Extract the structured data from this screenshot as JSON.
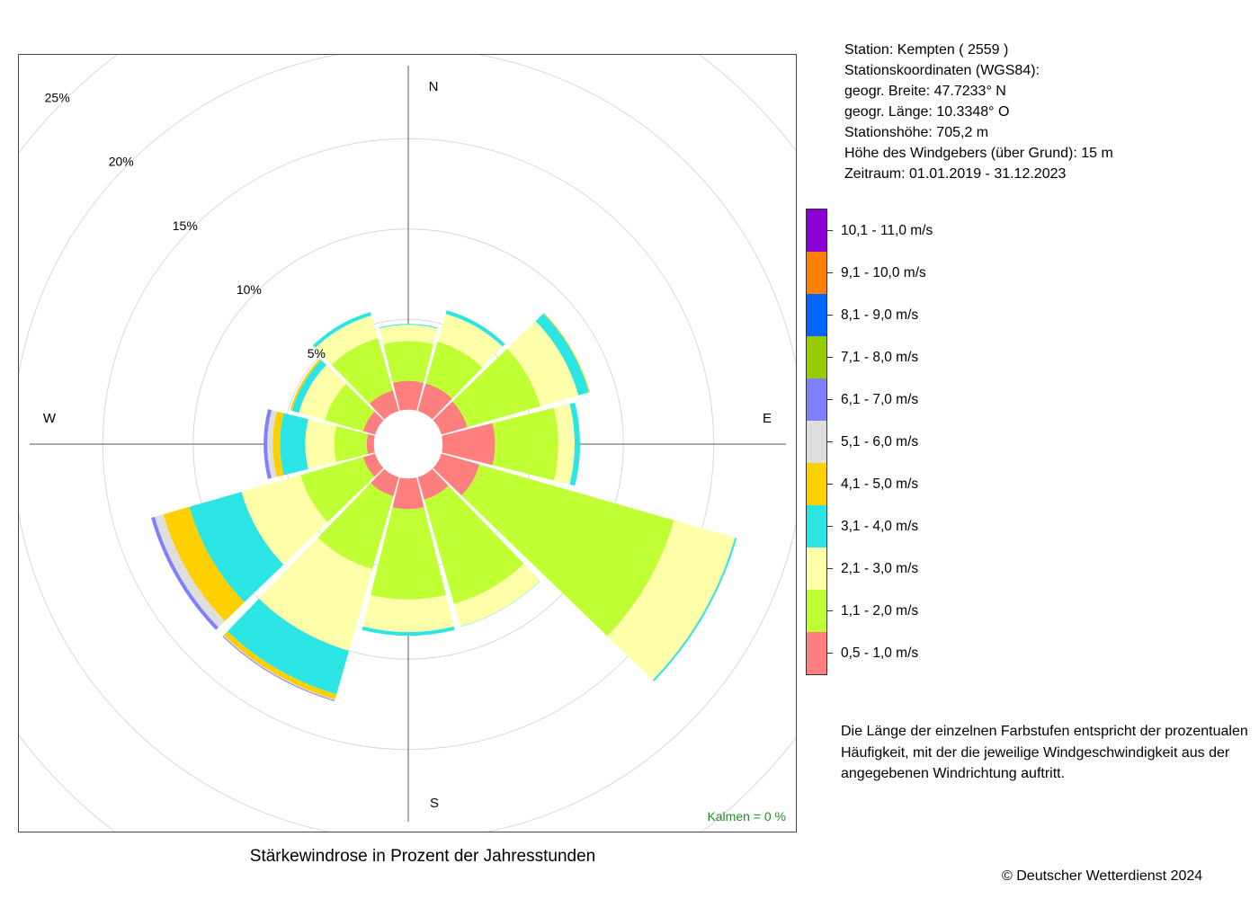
{
  "chart_data": {
    "type": "windrose",
    "title": "Stärkewindrose in Prozent der Jahresstunden",
    "radial_labels": [
      "5%",
      "10%",
      "15%",
      "20%",
      "25%"
    ],
    "radial_values": [
      5,
      10,
      15,
      20,
      25
    ],
    "radial_max": 21.5,
    "compass_labels": {
      "N": "N",
      "E": "E",
      "S": "S",
      "W": "W"
    },
    "directions_deg": [
      0,
      30,
      60,
      90,
      120,
      150,
      180,
      210,
      240,
      270,
      300,
      330
    ],
    "speed_classes": [
      "0,5 - 1,0 m/s",
      "1,1 - 2,0 m/s",
      "2,1 - 3,0 m/s",
      "3,1 - 4,0 m/s",
      "4,1 - 5,0 m/s",
      "5,1 - 6,0 m/s",
      "6,1 - 7,0 m/s",
      "7,1 - 8,0 m/s",
      "8,1 - 9,0 m/s",
      "9,1 - 10,0 m/s",
      "10,1 - 11,0 m/s"
    ],
    "speed_colors": [
      "#ff7f7f",
      "#bfff33",
      "#ffffaa",
      "#2be5e5",
      "#ffd000",
      "#dedede",
      "#8080ff",
      "#99cc00",
      "#0066ff",
      "#ff8000",
      "#8a00d4"
    ],
    "inner_radius_pct": 1.9,
    "series": [
      {
        "direction": 0,
        "values": [
          1.6,
          2.2,
          0.9,
          0.05,
          0,
          0,
          0,
          0,
          0,
          0,
          0
        ]
      },
      {
        "direction": 30,
        "values": [
          1.6,
          2.4,
          1.6,
          0.2,
          0,
          0,
          0,
          0,
          0,
          0,
          0
        ]
      },
      {
        "direction": 60,
        "values": [
          1.5,
          4.2,
          2.2,
          0.6,
          0.05,
          0,
          0,
          0,
          0,
          0,
          0
        ]
      },
      {
        "direction": 90,
        "values": [
          2.9,
          3.5,
          0.9,
          0.3,
          0,
          0,
          0,
          0,
          0,
          0,
          0
        ]
      },
      {
        "direction": 120,
        "values": [
          2.2,
          11.2,
          3.5,
          0.1,
          0,
          0,
          0,
          0,
          0,
          0,
          0
        ]
      },
      {
        "direction": 150,
        "values": [
          1.3,
          6.0,
          1.3,
          0.02,
          0,
          0,
          0,
          0,
          0,
          0,
          0
        ]
      },
      {
        "direction": 180,
        "values": [
          1.7,
          5.0,
          1.8,
          0.2,
          0,
          0,
          0,
          0,
          0,
          0,
          0
        ]
      },
      {
        "direction": 210,
        "values": [
          1.1,
          4.2,
          4.7,
          2.5,
          0.3,
          0.05,
          0.05,
          0,
          0,
          0,
          0
        ]
      },
      {
        "direction": 240,
        "values": [
          0.7,
          3.6,
          3.4,
          3.0,
          1.5,
          0.5,
          0.2,
          0,
          0,
          0,
          0
        ]
      },
      {
        "direction": 270,
        "values": [
          0.4,
          1.8,
          1.6,
          1.4,
          0.4,
          0.3,
          0.2,
          0,
          0,
          0,
          0
        ]
      },
      {
        "direction": 300,
        "values": [
          0.7,
          2.2,
          1.5,
          0.4,
          0.1,
          0,
          0,
          0,
          0,
          0,
          0
        ]
      },
      {
        "direction": 330,
        "values": [
          1.2,
          3.0,
          1.3,
          0.2,
          0,
          0,
          0,
          0,
          0,
          0,
          0
        ]
      }
    ]
  },
  "calm": "Kalmen  =  0 %",
  "station": {
    "line1": "Station:  Kempten  ( 2559 )",
    "line2": "Stationskoordinaten (WGS84):",
    "line3": "geogr. Breite: 47.7233° N",
    "line4": "geogr. Länge: 10.3348° O",
    "line5": "Stationshöhe: 705,2 m",
    "line6": "Höhe des Windgebers (über Grund): 15 m",
    "line7": "Zeitraum: 01.01.2019 - 31.12.2023"
  },
  "note": "Die Länge der einzelnen Farbstufen entspricht der prozentualen Häufigkeit, mit der die jeweilige Windgeschwindigkeit aus der angegebenen Windrichtung auftritt.",
  "copyright": "© Deutscher Wetterdienst  2024"
}
